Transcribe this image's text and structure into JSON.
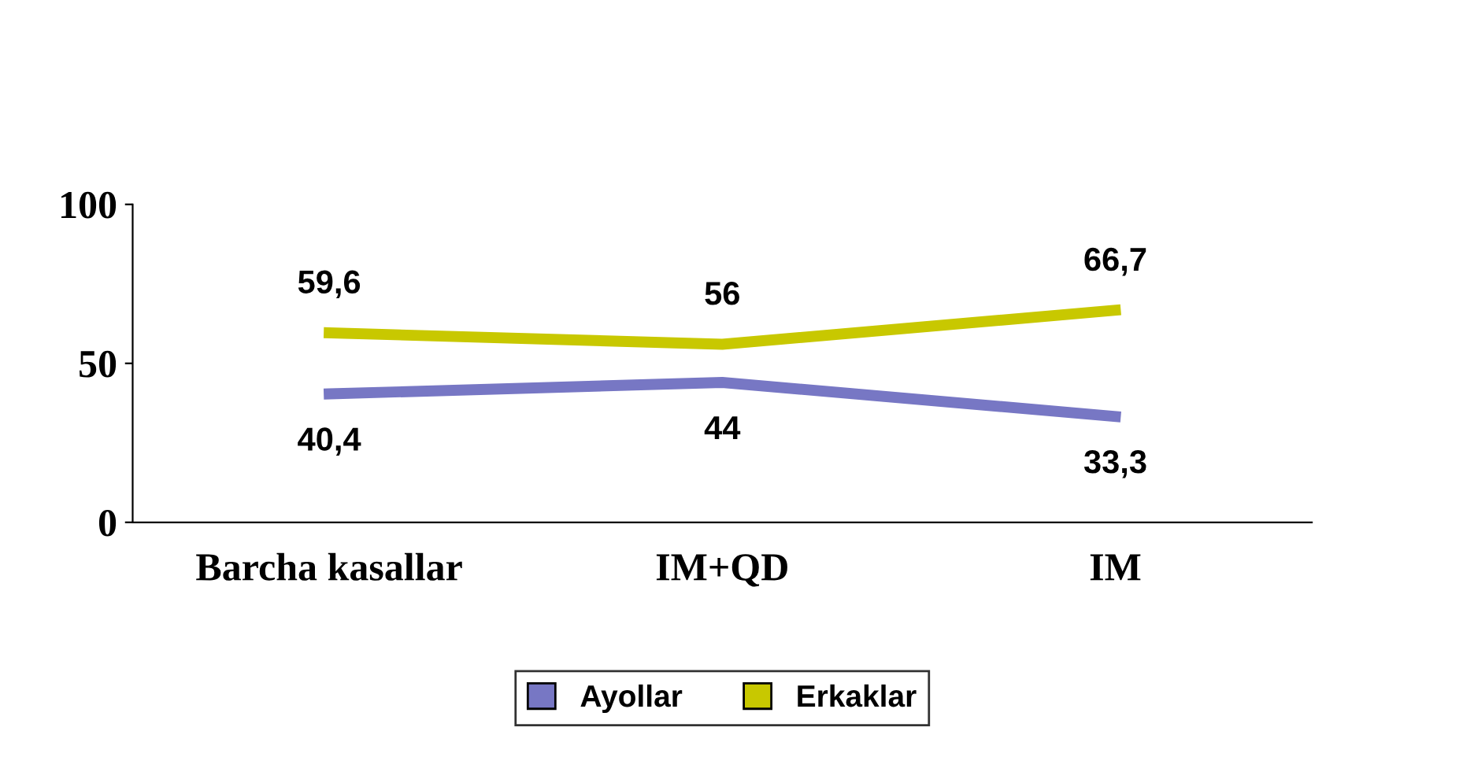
{
  "chart_data": {
    "type": "line",
    "categories": [
      "Barcha kasallar",
      "IM+QD",
      "IM"
    ],
    "series": [
      {
        "name": "Ayollar",
        "color": "#7777c4",
        "values": [
          40.4,
          44,
          33.3
        ],
        "value_labels": [
          "40,4",
          "44",
          "33,3"
        ]
      },
      {
        "name": "Erkaklar",
        "color": "#c8c800",
        "values": [
          59.6,
          56,
          66.7
        ],
        "value_labels": [
          "59,6",
          "56",
          "66,7"
        ]
      }
    ],
    "ylim": [
      0,
      100
    ],
    "yticks": [
      0,
      50,
      100
    ],
    "grid": false,
    "legend": "bottom",
    "marker": "none",
    "line_style": "solid"
  }
}
